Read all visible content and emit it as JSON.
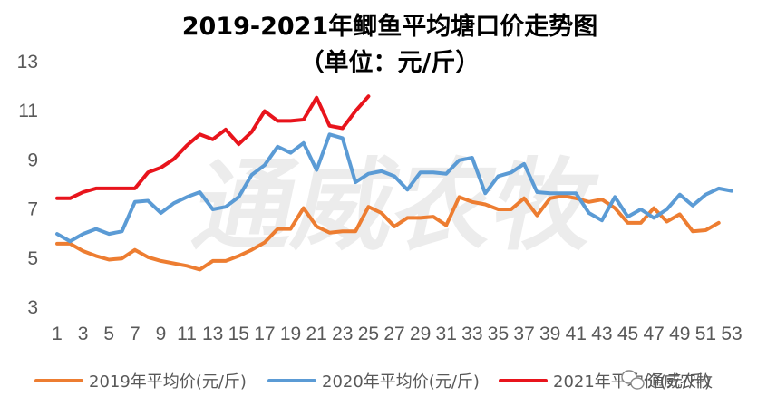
{
  "chart_data": {
    "type": "line",
    "title": "2019-2021年鲫鱼平均塘口价走势图",
    "subtitle": "（单位：元/斤）",
    "xlabel": "",
    "ylabel": "",
    "ylim": [
      3,
      13
    ],
    "yticks": [
      3,
      5,
      7,
      9,
      11,
      13
    ],
    "xticks": [
      1,
      3,
      5,
      7,
      9,
      11,
      13,
      15,
      17,
      19,
      21,
      23,
      25,
      27,
      29,
      31,
      33,
      35,
      37,
      39,
      41,
      43,
      45,
      47,
      49,
      51,
      53
    ],
    "xlim": [
      1,
      53
    ],
    "grid": false,
    "legend_position": "bottom",
    "series": [
      {
        "name": "2019年平均价(元/斤)",
        "color": "#ED7D31",
        "x": [
          1,
          2,
          3,
          4,
          5,
          6,
          7,
          8,
          9,
          10,
          11,
          12,
          13,
          14,
          15,
          16,
          17,
          18,
          19,
          20,
          21,
          22,
          23,
          24,
          25,
          26,
          27,
          28,
          29,
          30,
          31,
          32,
          33,
          34,
          35,
          36,
          37,
          38,
          39,
          40,
          41,
          42,
          43,
          44,
          45,
          46,
          47,
          48,
          49,
          50,
          51,
          52
        ],
        "values": [
          5.55,
          5.55,
          5.25,
          5.05,
          4.9,
          4.95,
          5.3,
          5.0,
          4.85,
          4.75,
          4.65,
          4.5,
          4.85,
          4.85,
          5.05,
          5.3,
          5.6,
          6.15,
          6.15,
          7.0,
          6.25,
          6.0,
          6.05,
          6.05,
          7.05,
          6.8,
          6.25,
          6.6,
          6.6,
          6.65,
          6.3,
          7.45,
          7.25,
          7.15,
          6.95,
          6.95,
          7.4,
          6.7,
          7.4,
          7.5,
          7.4,
          7.25,
          7.35,
          7.0,
          6.4,
          6.4,
          7.0,
          6.45,
          6.75,
          6.05,
          6.1,
          6.4
        ]
      },
      {
        "name": "2020年平均价(元/斤)",
        "color": "#5B9BD5",
        "x": [
          1,
          2,
          3,
          4,
          5,
          6,
          7,
          8,
          9,
          10,
          11,
          12,
          13,
          14,
          15,
          16,
          17,
          18,
          19,
          20,
          21,
          22,
          23,
          24,
          25,
          26,
          27,
          28,
          29,
          30,
          31,
          32,
          33,
          34,
          35,
          36,
          37,
          38,
          39,
          40,
          41,
          42,
          43,
          44,
          45,
          46,
          47,
          48,
          49,
          50,
          51,
          52,
          53
        ],
        "values": [
          5.95,
          5.65,
          5.95,
          6.15,
          5.95,
          6.05,
          7.25,
          7.3,
          6.8,
          7.2,
          7.45,
          7.65,
          6.95,
          7.05,
          7.45,
          8.35,
          8.75,
          9.5,
          9.25,
          9.65,
          8.55,
          10.0,
          9.85,
          8.05,
          8.4,
          8.5,
          8.3,
          7.75,
          8.45,
          8.45,
          8.4,
          8.95,
          9.05,
          7.6,
          8.3,
          8.45,
          8.8,
          7.65,
          7.6,
          7.6,
          7.6,
          6.8,
          6.5,
          7.45,
          6.65,
          6.95,
          6.6,
          6.95,
          7.55,
          7.1,
          7.55,
          7.8,
          7.7
        ]
      },
      {
        "name": "2021年平均价(元/斤)",
        "color": "#E8141C",
        "x": [
          1,
          2,
          3,
          4,
          5,
          6,
          7,
          8,
          9,
          10,
          11,
          12,
          13,
          14,
          15,
          16,
          17,
          18,
          19,
          20,
          21,
          22,
          23,
          24,
          25
        ],
        "values": [
          7.4,
          7.4,
          7.65,
          7.8,
          7.8,
          7.8,
          7.8,
          8.45,
          8.65,
          9.0,
          9.55,
          10.0,
          9.8,
          10.2,
          9.6,
          10.1,
          10.95,
          10.55,
          10.55,
          10.6,
          11.5,
          10.35,
          10.25,
          10.95,
          11.55
        ]
      }
    ]
  },
  "watermark": {
    "center_text": "通威农牧",
    "corner_text": "通威农牧"
  }
}
